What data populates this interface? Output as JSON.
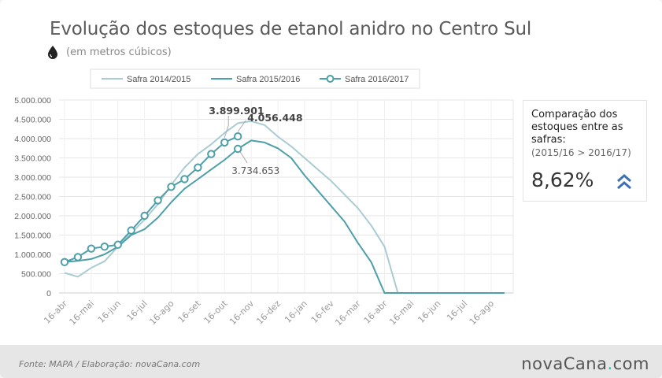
{
  "title": "Evolução dos estoques de etanol anidro no Centro Sul",
  "subtitle": "(em metros cúbicos)",
  "side_panel": {
    "heading": "Comparação dos estoques entre as safras:",
    "note": "(2015/16 > 2016/17)",
    "value": "8,62%",
    "icon": "double-chevron-up-icon",
    "icon_color": "#3b6fb6"
  },
  "footer": {
    "source": "Fonte: MAPA  / Elaboração: novaCana.com",
    "brand_main": "novaCana",
    "brand_dot": ".",
    "brand_suffix": "com",
    "brand_color": "#3bb3a9"
  },
  "chart_data": {
    "type": "line",
    "categories": [
      "16-abr",
      "16-mai",
      "16-jun",
      "16-jul",
      "16-ago",
      "16-set",
      "16-out",
      "16-nov",
      "16-dez",
      "16-jan",
      "16-fev",
      "16-mar",
      "16-abr",
      "16-mai",
      "16-jun",
      "16-jul",
      "16-ago"
    ],
    "ylim": [
      0,
      5000000
    ],
    "yticks": [
      0,
      500000,
      1000000,
      1500000,
      2000000,
      2500000,
      3000000,
      3500000,
      4000000,
      4500000,
      5000000
    ],
    "ytick_labels": [
      "0",
      "500.000",
      "1.000.000",
      "1.500.000",
      "2.000.000",
      "2.500.000",
      "3.000.000",
      "3.500.000",
      "4.000.000",
      "4.500.000",
      "5.000.000"
    ],
    "grid": true,
    "legend_position": "top",
    "series": [
      {
        "name": "Safra 2014/2015",
        "color": "#a9ccd3",
        "markers": false,
        "x": [
          0,
          0.5,
          1,
          1.5,
          2,
          2.5,
          3,
          3.5,
          4,
          4.5,
          5,
          5.5,
          6,
          6.5,
          7,
          7.5,
          8,
          8.5,
          9,
          9.5,
          10,
          10.5,
          11,
          11.5,
          12,
          12.5,
          13,
          13.5,
          14,
          14.5,
          15,
          15.5,
          16,
          16.5
        ],
        "values": [
          520000,
          420000,
          650000,
          820000,
          1200000,
          1550000,
          1900000,
          2300000,
          2800000,
          3250000,
          3600000,
          3850000,
          4150000,
          4400000,
          4450000,
          4350000,
          4050000,
          3800000,
          3500000,
          3200000,
          2900000,
          2550000,
          2200000,
          1750000,
          1200000,
          0,
          0,
          0,
          0,
          0,
          0,
          0,
          0,
          0
        ]
      },
      {
        "name": "Safra 2015/2016",
        "color": "#4d9fa8",
        "markers": false,
        "x": [
          0,
          0.5,
          1,
          1.5,
          2,
          2.5,
          3,
          3.5,
          4,
          4.5,
          5,
          5.5,
          6,
          6.5,
          7,
          7.5,
          8,
          8.5,
          9,
          9.5,
          10,
          10.5,
          11,
          11.5,
          12,
          12.5,
          13,
          13.5,
          14,
          14.5,
          15,
          15.5,
          16,
          16.5
        ],
        "values": [
          800000,
          830000,
          880000,
          1000000,
          1200000,
          1500000,
          1650000,
          1950000,
          2350000,
          2700000,
          2950000,
          3200000,
          3450000,
          3734653,
          3950000,
          3900000,
          3750000,
          3500000,
          3050000,
          2650000,
          2250000,
          1850000,
          1300000,
          800000,
          0,
          0,
          0,
          0,
          0,
          0,
          0,
          0,
          0,
          0
        ]
      },
      {
        "name": "Safra 2016/2017",
        "color": "#4d9fa8",
        "markers": true,
        "x": [
          0,
          0.5,
          1,
          1.5,
          2,
          2.5,
          3,
          3.5,
          4,
          4.5,
          5,
          5.5,
          6,
          6.5
        ],
        "values": [
          800000,
          930000,
          1150000,
          1200000,
          1250000,
          1620000,
          2000000,
          2400000,
          2750000,
          2950000,
          3250000,
          3600000,
          3899901,
          4056448
        ]
      }
    ],
    "annotations": [
      {
        "label": "3.899.901",
        "series": 2,
        "index": 12,
        "bold": true
      },
      {
        "label": "4.056.448",
        "series": 2,
        "index": 13,
        "bold": true
      },
      {
        "label": "3.734.653",
        "series": 1,
        "index": 13,
        "bold": false
      }
    ]
  }
}
